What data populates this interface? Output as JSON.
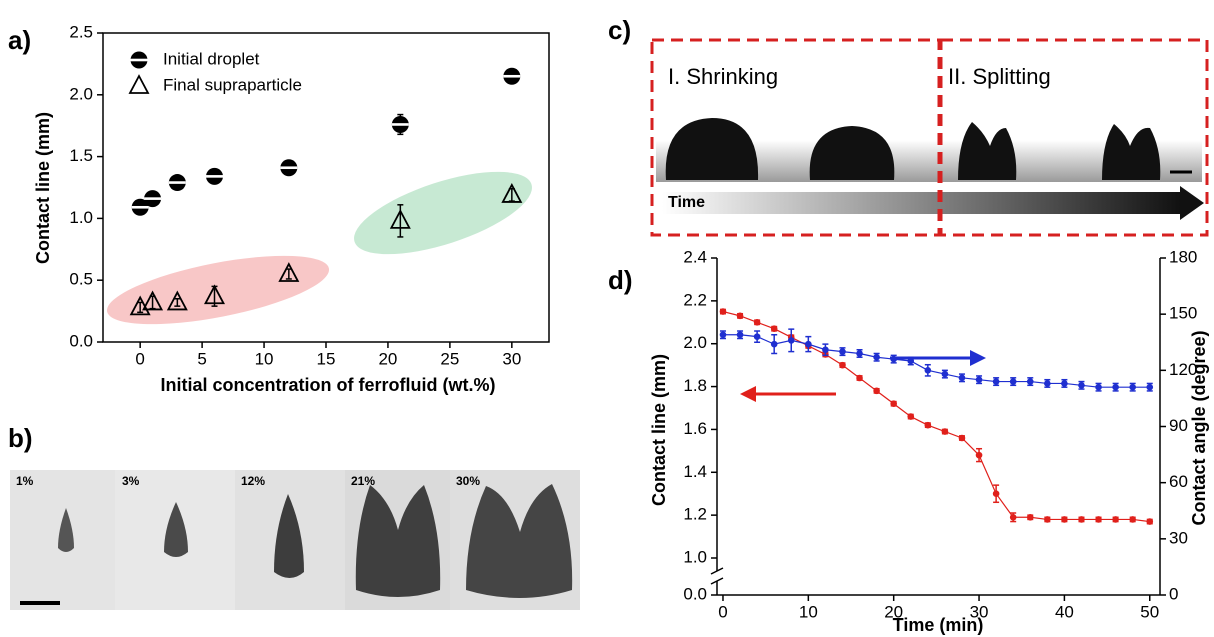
{
  "panel_labels": [
    "a)",
    "b)",
    "c)",
    "d)"
  ],
  "photos_b": {
    "labels": [
      "1%",
      "3%",
      "12%",
      "21%",
      "30%"
    ]
  },
  "photos_c": {
    "stages": [
      "I. Shrinking",
      "II. Splitting"
    ],
    "arrow_label": "Time"
  },
  "chart_data": [
    {
      "type": "scatter",
      "xlabel": "Initial concentration of ferrofluid (wt.%)",
      "ylabel": "Contact line (mm)",
      "xlim": [
        -3,
        33
      ],
      "xticks": [
        0,
        5,
        10,
        15,
        20,
        25,
        30
      ],
      "ylim": [
        0,
        2.5
      ],
      "yticks": [
        {
          "value": 0,
          "label": "0.0"
        },
        0.5,
        {
          "value": 1,
          "label": "1.0"
        },
        1.5,
        {
          "value": 2,
          "label": "2.0"
        },
        2.5
      ],
      "legend": "upper left",
      "series": [
        {
          "name": "Initial droplet",
          "marker": "half-circle",
          "color": "#000000",
          "x": [
            0,
            1,
            3,
            6,
            12,
            21,
            30
          ],
          "values": [
            1.09,
            1.16,
            1.29,
            1.34,
            1.41,
            1.76,
            2.15
          ],
          "errors": [
            0.03,
            0.03,
            0.03,
            0.05,
            0.04,
            0.08,
            0.04
          ]
        },
        {
          "name": "Final supraparticle",
          "marker": "triangle",
          "color": "#000000",
          "x": [
            0,
            1,
            3,
            6,
            12,
            21,
            30
          ],
          "values": [
            0.28,
            0.32,
            0.32,
            0.37,
            0.55,
            0.98,
            1.19
          ],
          "errors": [
            0.04,
            0.05,
            0.03,
            0.08,
            0.04,
            0.13,
            0.05
          ]
        }
      ]
    },
    {
      "type": "line",
      "xlabel": "Time (min)",
      "ylabel": "Contact line (mm)",
      "y2label": "Contact angle (degree)",
      "xlim": [
        -0.7,
        51.2
      ],
      "xticks": [
        0,
        10,
        20,
        30,
        40,
        50
      ],
      "ylim": [
        0,
        2.4
      ],
      "y_break": [
        0,
        1
      ],
      "yticks": [
        {
          "value": 0,
          "label": "0.0"
        },
        {
          "value": 1,
          "label": "1.0"
        },
        1.2,
        1.4,
        1.6,
        1.8,
        {
          "value": 2,
          "label": "2.0"
        },
        2.2,
        2.4
      ],
      "y2lim": [
        0,
        180
      ],
      "y2ticks": [
        0,
        30,
        60,
        90,
        120,
        150,
        180
      ],
      "x": [
        0,
        2,
        4,
        6,
        8,
        10,
        12,
        14,
        16,
        18,
        20,
        22,
        24,
        26,
        28,
        30,
        32,
        34,
        36,
        38,
        40,
        42,
        44,
        46,
        48,
        50
      ],
      "series": [
        {
          "name": "Contact line",
          "color": "#e0201b",
          "values": [
            2.15,
            2.13,
            2.1,
            2.07,
            2.03,
            1.99,
            1.95,
            1.9,
            1.84,
            1.78,
            1.72,
            1.66,
            1.62,
            1.59,
            1.56,
            1.48,
            1.3,
            1.19,
            1.19,
            1.18,
            1.18,
            1.18,
            1.18,
            1.18,
            1.18,
            1.17
          ],
          "errors": [
            0.01,
            0.01,
            0.01,
            0.01,
            0.01,
            0.01,
            0.01,
            0.01,
            0.01,
            0.01,
            0.01,
            0.01,
            0.01,
            0.01,
            0.01,
            0.03,
            0.04,
            0.02,
            0.01,
            0.01,
            0.01,
            0.01,
            0.01,
            0.01,
            0.01,
            0.01
          ]
        },
        {
          "name": "Contact angle",
          "color": "#1f2fd0",
          "axis": "y2",
          "values": [
            139,
            139,
            138,
            134,
            136,
            134,
            131,
            130,
            129,
            127,
            126,
            125,
            120,
            118,
            116,
            115,
            114,
            114,
            114,
            113,
            113,
            112,
            111,
            111,
            111,
            111
          ],
          "errors": [
            2,
            2,
            3,
            5,
            6,
            4,
            3,
            2,
            2,
            2,
            2,
            2,
            3,
            2,
            2,
            2,
            2,
            2,
            2,
            2,
            2,
            2,
            2,
            2,
            2,
            2
          ]
        }
      ]
    }
  ]
}
